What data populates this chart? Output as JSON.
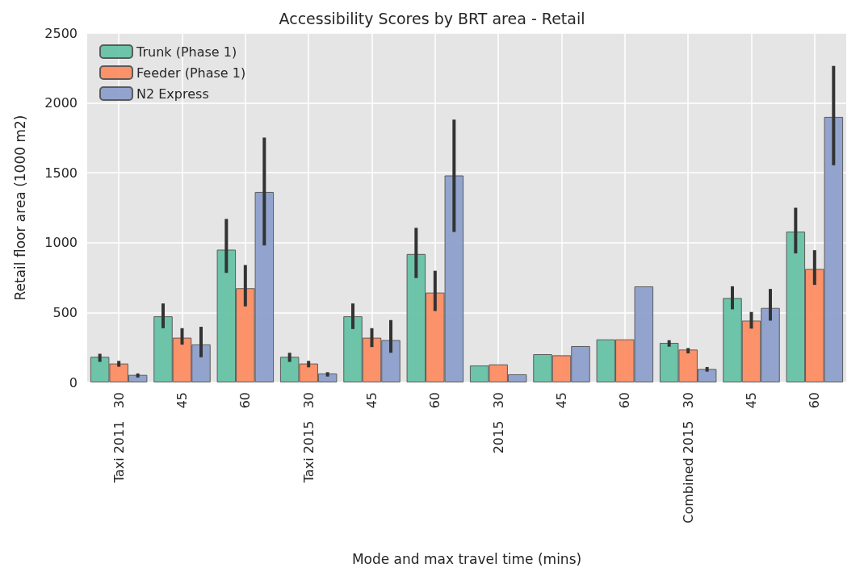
{
  "chart_data": {
    "type": "bar",
    "title": "Accessibility Scores by BRT area - Retail",
    "xlabel": "Mode and max travel time (mins)",
    "ylabel": "Retail floor area (1000 m2)",
    "categories": [
      "Taxi 2011   30",
      "45",
      "60",
      "Taxi 2015   30",
      "45",
      "60",
      "2015   30",
      "45",
      "60",
      "Combined 2015   30",
      "45",
      "60"
    ],
    "series": [
      {
        "name": "Trunk (Phase 1)",
        "color": "#66c2a5",
        "values": [
          183,
          473,
          950,
          183,
          473,
          919,
          121,
          202,
          308,
          283,
          604,
          1079
        ],
        "errors": [
          [
            147,
            205
          ],
          [
            388,
            565
          ],
          [
            784,
            1170
          ],
          [
            147,
            212
          ],
          [
            382,
            565
          ],
          [
            747,
            1106
          ],
          null,
          null,
          null,
          [
            256,
            302
          ],
          [
            523,
            688
          ],
          [
            923,
            1250
          ]
        ]
      },
      {
        "name": "Feeder (Phase 1)",
        "color": "#fc8d62",
        "values": [
          135,
          320,
          674,
          135,
          320,
          643,
          129,
          194,
          308,
          235,
          442,
          812
        ],
        "errors": [
          [
            112,
            154
          ],
          [
            270,
            388
          ],
          [
            544,
            840
          ],
          [
            108,
            154
          ],
          [
            253,
            388
          ],
          [
            511,
            799
          ],
          null,
          null,
          null,
          [
            208,
            246
          ],
          [
            385,
            504
          ],
          [
            698,
            946
          ]
        ]
      },
      {
        "name": "N2 Express",
        "color": "#8da0cb",
        "values": [
          54,
          272,
          1363,
          64,
          303,
          1481,
          58,
          260,
          687,
          96,
          533,
          1900
        ],
        "errors": [
          [
            35,
            64
          ],
          [
            180,
            398
          ],
          [
            980,
            1752
          ],
          [
            42,
            73
          ],
          [
            212,
            446
          ],
          [
            1077,
            1881
          ],
          null,
          null,
          null,
          [
            77,
            110
          ],
          [
            442,
            669
          ],
          [
            1554,
            2265
          ]
        ]
      }
    ],
    "ylim": [
      0,
      2500
    ],
    "yticks": [
      0,
      500,
      1000,
      1500,
      2000,
      2500
    ],
    "grid": true,
    "legend": "top left"
  }
}
